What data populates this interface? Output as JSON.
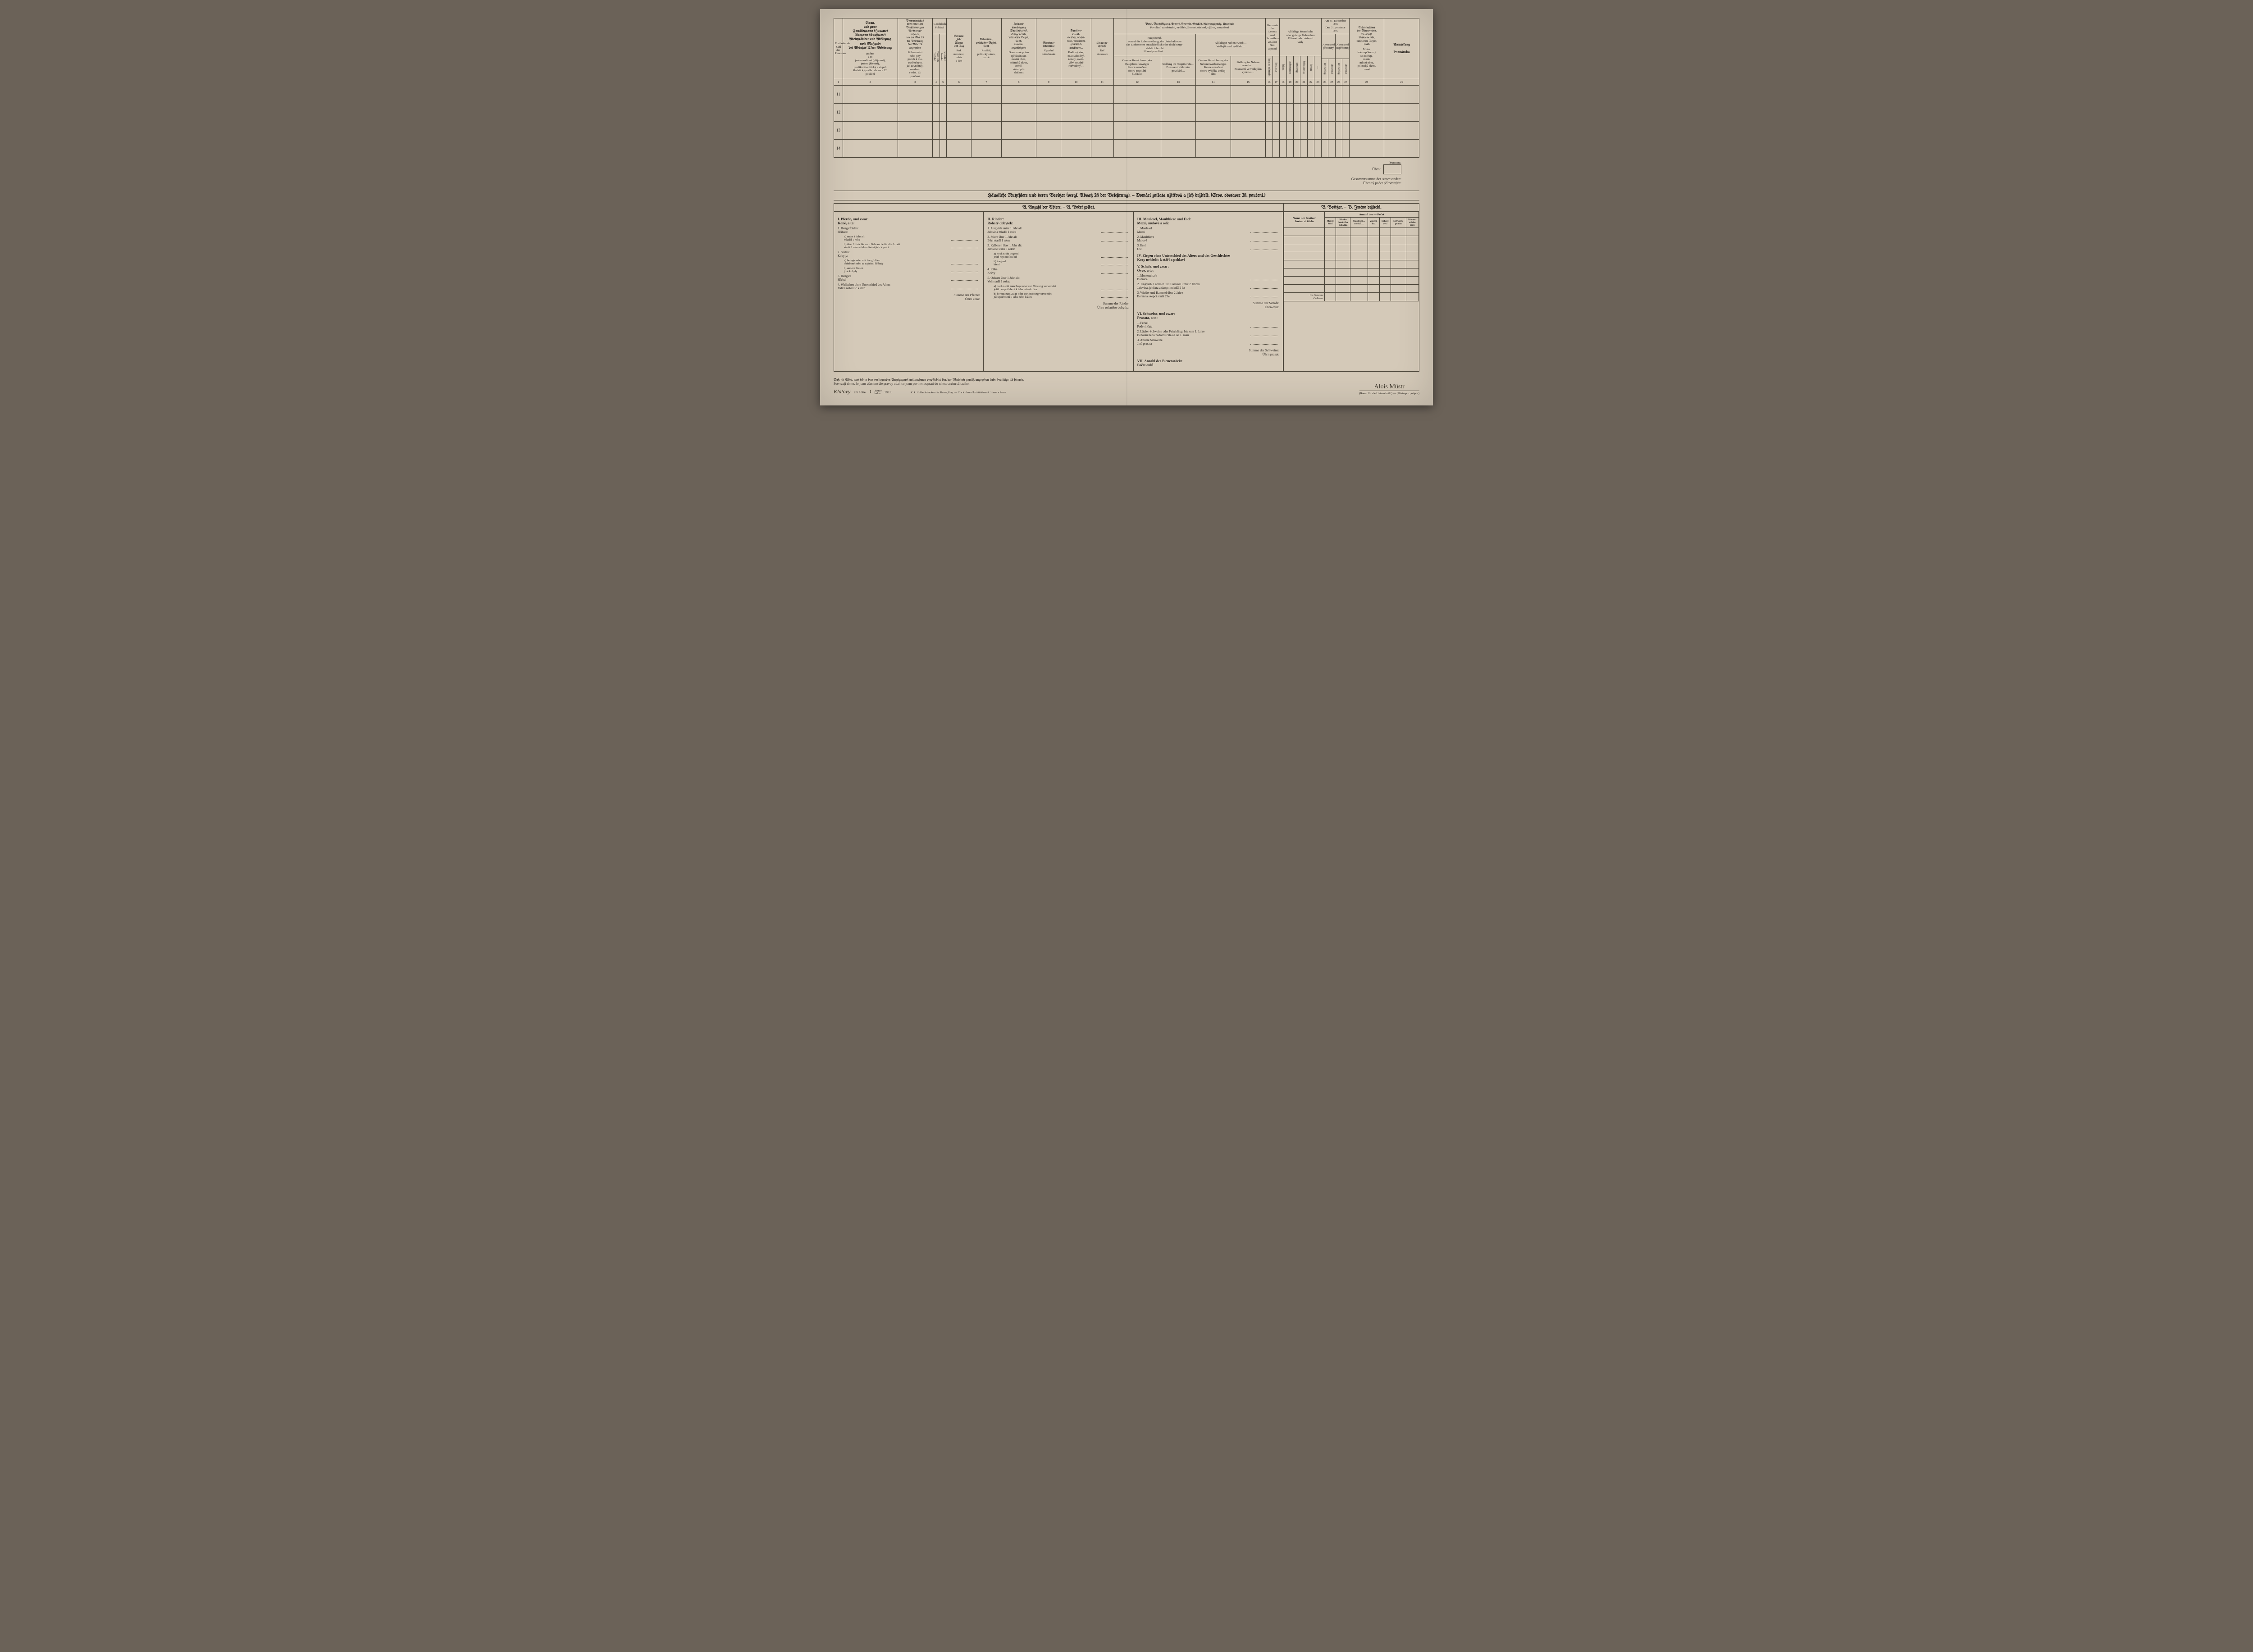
{
  "header": {
    "col1": "Fortlaufende Zahl der Personen",
    "col2_de": "Name,\nund zwar\nFamilienname (Zuname)\nVorname (Taufname)\nAdelsprädicat und Abkürzung\nnach Maßgabe\ndes Absatzes 12 der Belehrung",
    "col2_cz": "Jméno,\na to\njméno rodinné (příjmení),\njméno (křestní),\npredikát šlechtický a stupeň\nšlechtický podle odstavce 12.\npoučení",
    "col3_de": "Verwandtschaft\noder sonstiges\nVerhältnis zum\nWohnungs-\ninhaber,\nwie im Abs. 13\nder Belehrung\ndes Näheren\nangegeben",
    "col3_cz": "Příbuzenství\nnebo jiný\npoměr k ma-\njetníku bytu,\njak zevrubněji\nuvedeno\nv odst. 13.\npoučení",
    "col45_top": "Geschlecht\nPohlaví",
    "col4": "männlich\nmužské",
    "col5": "weiblich\nženské",
    "col6_de": "Geburts-\nJahr,\nMonat\nund Tag",
    "col6_cz": "Rok\nnarození,\nměsíc\na den",
    "col7_de": "Geburtsort,\npolitischer Bezirk,\nLand",
    "col7_cz": "Rodiště,\npolitický okres,\nzemě",
    "col8_de": "Heimats-\nberechtigung\n(Zuständigkeit),\nOrtsgemeinde,\npolitischer Bezirk,\nLand,\nStaats-\nangehörigkeit",
    "col8_cz": "Domovské právo\n(příslušnost),\nmístní obec,\npolitický okres,\nzemě,\nstátní pří-\nslušnost",
    "col9_de": "Glaubens-\nbekenntnis",
    "col9_cz": "Vyznání\nnáboženské",
    "col10_de": "Familien-\nStand,\nob ledig, verhei-\nratet, verwitwet,\ngerichtlich\ngeschieden…",
    "col10_cz": "Rodinný stav,\nzda svobodný,\nženatý, ovdo-\nvělý, soudně\nrozvedený…",
    "col11_de": "Umgangs-\nsprache",
    "col11_cz": "Řeč\nobcovací",
    "col12_top_de": "Beruf, Beschäftigung, Erwerb, Gewerbe, Geschäft, Nahrungszweig, Unterhalt",
    "col12_top_cz": "Povolání, zaměstnání, výdělek, živnost, obchod, výživa, zaopatření",
    "col12_de": "Hauptberuf,\nworauf die Lebensstellung, der Unterhalt oder\ndas Einkommen ausschließlich oder doch haupt-\nsächlich beruht\nHlavní povolání…",
    "col13_de": "Genaue Bezeichnung des\nHauptberufszweiges\nPřesné označení\noboru povolání\nhlavního",
    "col13b": "Stellung im Hauptberufe…\nPostavení v hlavním\npovolání…",
    "col14_top": "Allfälliger Nebenerwerb…\nVedlejší snad výdělek…",
    "col14": "Genaue Bezeichnung des\nNebenerwerbszweiges\nPřesné označení\noboru výdělku vedlej-\nšího",
    "col15": "Stellung im Neben-\nerwerbe…\nPostavení ve vedlejším\nvýdělku…",
    "col1617_top": "Kenntnis des\nLesens und\nSchreibens\nZnalost čtení\na psaní",
    "col1823_top": "Allfällige körperliche\noder geistige Gebrechen\nTělesné nebo duševní\nvady",
    "col2427_top_de": "Am 31. December 1890",
    "col2427_top_cz": "Dne 31. prosince 1890",
    "col24": "Anwesend\npřítomný",
    "col26": "Abwesend\nnepřítomný",
    "col28_de": "Aufenthaltsort\ndes Abwesenden,\nOrtschaft,\nOrtsgemeinde,\npolitischer Bezirk,\nLand",
    "col28_cz": "Místo,\nkde nepřítomný\nse zdržuje,\nosada,\nmístní obec,\npolitický okres,\nzemě",
    "col29_de": "Anmerkung",
    "col29_cz": "Poznámka",
    "ref_row": "vergl. Abs. … der Belehrung / srov. odst. … poučení"
  },
  "colnums": [
    "1",
    "2",
    "3",
    "4",
    "5",
    "6",
    "7",
    "8",
    "9",
    "10",
    "11",
    "12",
    "13",
    "14",
    "15",
    "16",
    "17",
    "18",
    "19",
    "20",
    "21",
    "22",
    "23",
    "24",
    "25",
    "26",
    "27",
    "28",
    "29"
  ],
  "rows": [
    "11",
    "12",
    "13",
    "14"
  ],
  "summary": {
    "summe": "Summe:",
    "uhrn": "Úhrn:",
    "gesamt_de": "Gesammtsumme der Anwesenden:",
    "gesamt_cz": "Úhrnný počet přítomných:"
  },
  "livestock": {
    "title": "Häusliche Nutzthiere und deren Besitzer (vergl. Absatz 28 der Belehrung). — Domácí zvířata užitková a jich držitelé. (Srov. odstavec 28. poučení.)",
    "secA": "A. Anzahl der Thiere. — A. Počet zvířat.",
    "secB": "B. Besitzer. — B. Jméno držitelů.",
    "I": {
      "head": "I. Pferde, und zwar:\n   Koně, a to:",
      "i1": "1. Hengstfohlen:\n   Hříbata:",
      "i1a": "a) unter 1 Jahr alt\n   mladší 1 roku",
      "i1b": "b) über 1 Jahr bis zum Gebrauche für die Arbeit\n   starší 1 roku až do užívání jich k práci",
      "i2": "2. Stuten:\n   Kobyly:",
      "i2a": "a) belegte oder mit Saugfohlen\n   obřebené nebo se sajícími hříbaty",
      "i2b": "b) andere Stuten\n   jiné kobyly",
      "i3": "3. Hengste\n   Hřebci",
      "i4": "4. Wallachen ohne Unterschied des Alters\n   Valaši nehledíc k stáří",
      "sum": "Summe der Pferde:\nÚhrn koní:"
    },
    "II": {
      "head": "II. Rinder:\n    Rohatý dobytek:",
      "i1": "1. Jungvieh unter 1 Jahr alt\n   Jalovina mladší 1 roku",
      "i2": "2. Stiere über 1 Jahr alt\n   Býci starší 1 roku",
      "i3": "3. Kalbinen über 1 Jahr alt:\n   Jalovice starší 1 roku:",
      "i3a": "a) noch nicht tragend\n   ještě nejsoucí stelné",
      "i3b": "b) tragend\n   březí",
      "i4": "4. Kühe\n   Krávy",
      "i5": "5. Ochsen über 1 Jahr alt:\n   Voli starší 1 roku:",
      "i5a": "a) noch nicht zum Zuge oder zur Mästung verwendet\n   ještě neupotřebení k tahu nebo k žíru",
      "i5b": "b) bereits zum Zuge oder zur Mästung verwendet\n   již upotřebení k tahu nebo k žíru",
      "sum": "Summe der Rinder:\nÚhrn rohatého dobytka:"
    },
    "III": {
      "head": "III. Maulesel, Maulthiere und Esel:\n     Mezci, mulové a osli:",
      "i1": "1. Maulesel\n   Mezci",
      "i2": "2. Maulthiere\n   Mulové",
      "i3": "3. Esel\n   Osli"
    },
    "IV": "IV. Ziegen ohne Unterschied des Alters und des Geschlechtes\n    Kozy nehledíc k stáří a pohlaví",
    "V": {
      "head": "V. Schafe, und zwar:\n   Ovce, a to:",
      "i1": "1. Mutterschafe\n   Bahnice",
      "i2": "2. Jungvieh, Lämmer und Hammel unter 2 Jahren\n   Jalovina, jehňata a skopci mladší 2 let",
      "i3": "3. Widder und Hammel über 2 Jahre\n   Berani a skopci starší 2 let",
      "sum": "Summe der Schafe:\nÚhrn ovcí:"
    },
    "VI": {
      "head": "VI. Schweine, und zwar:\n    Prasata, a to:",
      "i1": "1. Ferkel\n   Podsvinčata",
      "i2": "2. Läufer-Schweine oder Frischlinge bis zum 1. Jahre\n   Běhouni nebo nedorostčata až do 1. roku",
      "i3": "3. Andere Schweine\n   Jiná prasata",
      "sum": "Summe der Schweine:\nÚhrn prasat:"
    },
    "VII": "VII. Anzahl der Bienenstöcke\n     Počet oulů",
    "owners": {
      "name": "Name der Besitzer\nJméno držitelů",
      "count_hdr": "Anzahl der — Počet",
      "cols": [
        "Pferde\nkoní",
        "Rinder\nhovězího\ndobytka",
        "Maulesel…\nmezků…",
        "Ziegen\nkoz",
        "Schafe\novcí",
        "Schweine\nprasat",
        "Bienen-\nstöcke\noulů"
      ],
      "total": "Im Ganzen:\nCelkem:"
    }
  },
  "footer": {
    "decl_de": "Daß ich Alles, was ich in dem vorliegenden Anzeigezettel aufzunehmen verpflichtet bin, der Wahrheit gemäß angegeben habe, bestätige ich hiermit.",
    "decl_cz": "Potvrzuji tímto, že jsem všechno dle pravdy udal, co jsem povinen zapsati do tohoto archu sčítacího.",
    "place": "Klatovy",
    "date_label": "am / dne",
    "date_val": "1",
    "month": "Jänner\nledna",
    "year": "1891.",
    "printer": "K. k. Hofbuchdruckerei A. Haase, Prag. — C. a k. dvorní knihtiskárna A. Haase v Praze.",
    "sig_label": "(Raum für die Unterschrift.) — (Místo pro podpis.)",
    "signature": "Alois Müstr"
  }
}
